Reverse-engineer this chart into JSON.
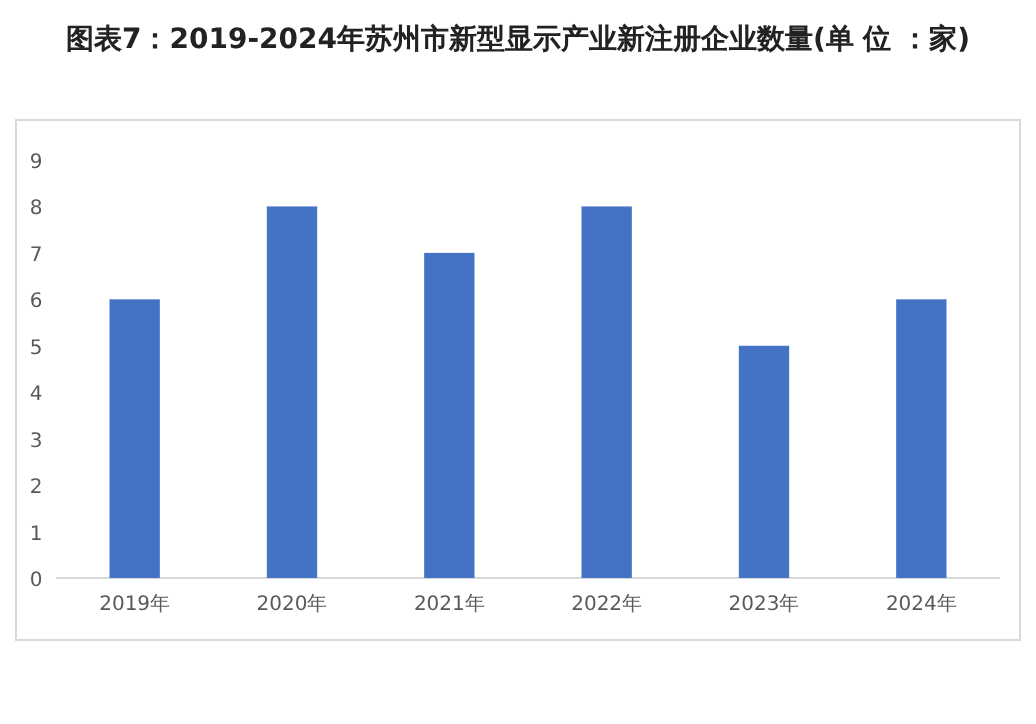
{
  "chart_data": {
    "type": "bar",
    "title": "图表7：2019-2024年苏州市新型显示产业新注册企业数量(单 位 ：家)",
    "categories": [
      "2019年",
      "2020年",
      "2021年",
      "2022年",
      "2023年",
      "2024年"
    ],
    "values": [
      6,
      8,
      7,
      8,
      5,
      6
    ],
    "color": "#4472c4",
    "ylim": [
      0,
      9
    ],
    "yticks": [
      0,
      1,
      2,
      3,
      4,
      5,
      6,
      7,
      8,
      9
    ],
    "grid": false
  }
}
